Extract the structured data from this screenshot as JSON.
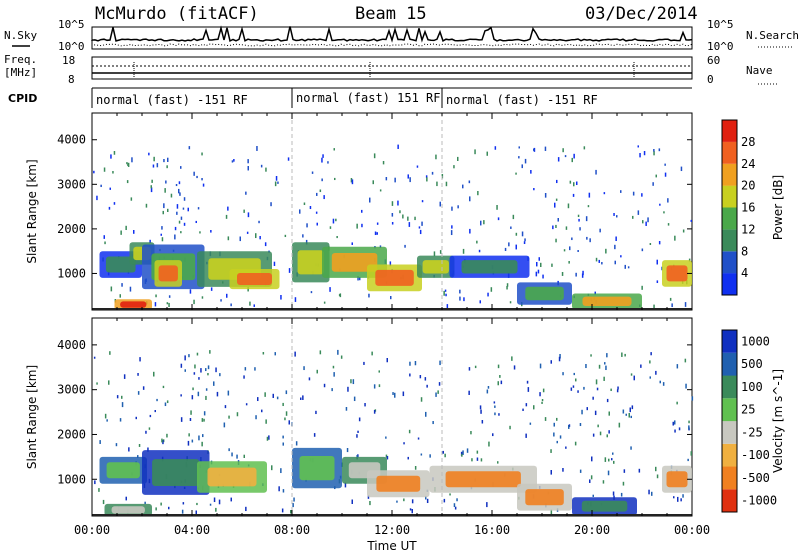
{
  "header": {
    "station": "McMurdo (fitACF)",
    "beam": "Beam 15",
    "date": "03/Dec/2014"
  },
  "noise_panel": {
    "left_label": "N.Sky",
    "right_label": "N.Search",
    "left_ticks": [
      "10^5",
      "10^0"
    ],
    "right_ticks": [
      "10^5",
      "10^0"
    ]
  },
  "freq_panel": {
    "left_label_1": "Freq.",
    "left_label_2": "[MHz]",
    "right_label": "Nave",
    "left_ticks": [
      "18",
      "8"
    ],
    "right_ticks": [
      "60",
      "0"
    ]
  },
  "cpid": {
    "label": "CPID",
    "segments": [
      {
        "label": "normal (fast) -151 RF",
        "start_hour": 0
      },
      {
        "label": "normal (fast) 151 RF",
        "start_hour": 8
      },
      {
        "label": "normal (fast) -151 RF",
        "start_hour": 14
      }
    ]
  },
  "colors": {
    "power": [
      "#1030f0",
      "#2050c8",
      "#3a8a5a",
      "#4aa84a",
      "#c8d020",
      "#f0a020",
      "#f06020",
      "#e02010"
    ],
    "velocity": [
      "#1030c0",
      "#2060b0",
      "#3a8a5a",
      "#60c050",
      "#c8c8c0",
      "#f0b040",
      "#f08020",
      "#e03010"
    ],
    "velocity_slow": "#c8c8c0",
    "velocity_neg": "#f08020",
    "velocity_pos": "#3a8a5a"
  },
  "chart_data": [
    {
      "type": "heatmap",
      "title": "Power",
      "xlabel": "",
      "ylabel": "Slant Range [km]",
      "x_unit": "UT hours",
      "xlim": [
        0,
        24
      ],
      "ylim": [
        180,
        4600
      ],
      "y_ticks": [
        1000,
        2000,
        3000,
        4000
      ],
      "colorbar_label": "Power [dB]",
      "colorbar_ticks": [
        "4",
        "8",
        "12",
        "16",
        "20",
        "24",
        "28"
      ],
      "regions": [
        {
          "x": [
            0.9,
            2.4
          ],
          "y": [
            180,
            420
          ],
          "level": 7
        },
        {
          "x": [
            0.3,
            2.0
          ],
          "y": [
            900,
            1500
          ],
          "level": 2
        },
        {
          "x": [
            1.5,
            2.5
          ],
          "y": [
            1200,
            1700
          ],
          "level": 4
        },
        {
          "x": [
            2.0,
            4.5
          ],
          "y": [
            650,
            1650
          ],
          "level": 3
        },
        {
          "x": [
            2.5,
            3.6
          ],
          "y": [
            700,
            1300
          ],
          "level": 6
        },
        {
          "x": [
            4.2,
            7.2
          ],
          "y": [
            700,
            1500
          ],
          "level": 4
        },
        {
          "x": [
            5.5,
            7.5
          ],
          "y": [
            650,
            1100
          ],
          "level": 6
        },
        {
          "x": [
            8.0,
            9.5
          ],
          "y": [
            800,
            1700
          ],
          "level": 4
        },
        {
          "x": [
            9.2,
            11.8
          ],
          "y": [
            900,
            1600
          ],
          "level": 5
        },
        {
          "x": [
            11.0,
            13.2
          ],
          "y": [
            600,
            1200
          ],
          "level": 6
        },
        {
          "x": [
            13.0,
            14.5
          ],
          "y": [
            900,
            1400
          ],
          "level": 4
        },
        {
          "x": [
            14.3,
            17.5
          ],
          "y": [
            900,
            1400
          ],
          "level": 2
        },
        {
          "x": [
            17.0,
            19.2
          ],
          "y": [
            300,
            800
          ],
          "level": 3
        },
        {
          "x": [
            19.2,
            22.0
          ],
          "y": [
            200,
            550
          ],
          "level": 5
        },
        {
          "x": [
            22.8,
            24.0
          ],
          "y": [
            700,
            1300
          ],
          "level": 6
        }
      ]
    },
    {
      "type": "heatmap",
      "title": "Velocity",
      "xlabel": "Time UT",
      "ylabel": "Slant Range [km]",
      "x_ticks": [
        "00:00",
        "04:00",
        "08:00",
        "12:00",
        "16:00",
        "20:00",
        "00:00"
      ],
      "xlim": [
        0,
        24
      ],
      "ylim": [
        180,
        4600
      ],
      "y_ticks": [
        1000,
        2000,
        3000,
        4000
      ],
      "colorbar_label": "Velocity [m s^-1]",
      "colorbar_ticks": [
        "1000",
        "500",
        "100",
        "25",
        "-25",
        "-100",
        "-500",
        "-1000"
      ],
      "regions": [
        {
          "x": [
            0.5,
            2.4
          ],
          "y": [
            180,
            450
          ],
          "level": 4
        },
        {
          "x": [
            0.3,
            2.2
          ],
          "y": [
            900,
            1500
          ],
          "level": 3
        },
        {
          "x": [
            2.0,
            4.7
          ],
          "y": [
            650,
            1650
          ],
          "level": 2
        },
        {
          "x": [
            4.2,
            7.0
          ],
          "y": [
            700,
            1400
          ],
          "level": 5
        },
        {
          "x": [
            8.0,
            10.0
          ],
          "y": [
            800,
            1700
          ],
          "level": 3
        },
        {
          "x": [
            10.0,
            11.8
          ],
          "y": [
            900,
            1500
          ],
          "level": 4
        },
        {
          "x": [
            11.0,
            13.5
          ],
          "y": [
            600,
            1200
          ],
          "level": 6
        },
        {
          "x": [
            13.5,
            17.8
          ],
          "y": [
            700,
            1300
          ],
          "level": 6
        },
        {
          "x": [
            17.0,
            19.2
          ],
          "y": [
            300,
            900
          ],
          "level": 6
        },
        {
          "x": [
            19.2,
            21.8
          ],
          "y": [
            200,
            600
          ],
          "level": 2
        },
        {
          "x": [
            22.8,
            24.0
          ],
          "y": [
            700,
            1300
          ],
          "level": 6
        }
      ]
    }
  ]
}
